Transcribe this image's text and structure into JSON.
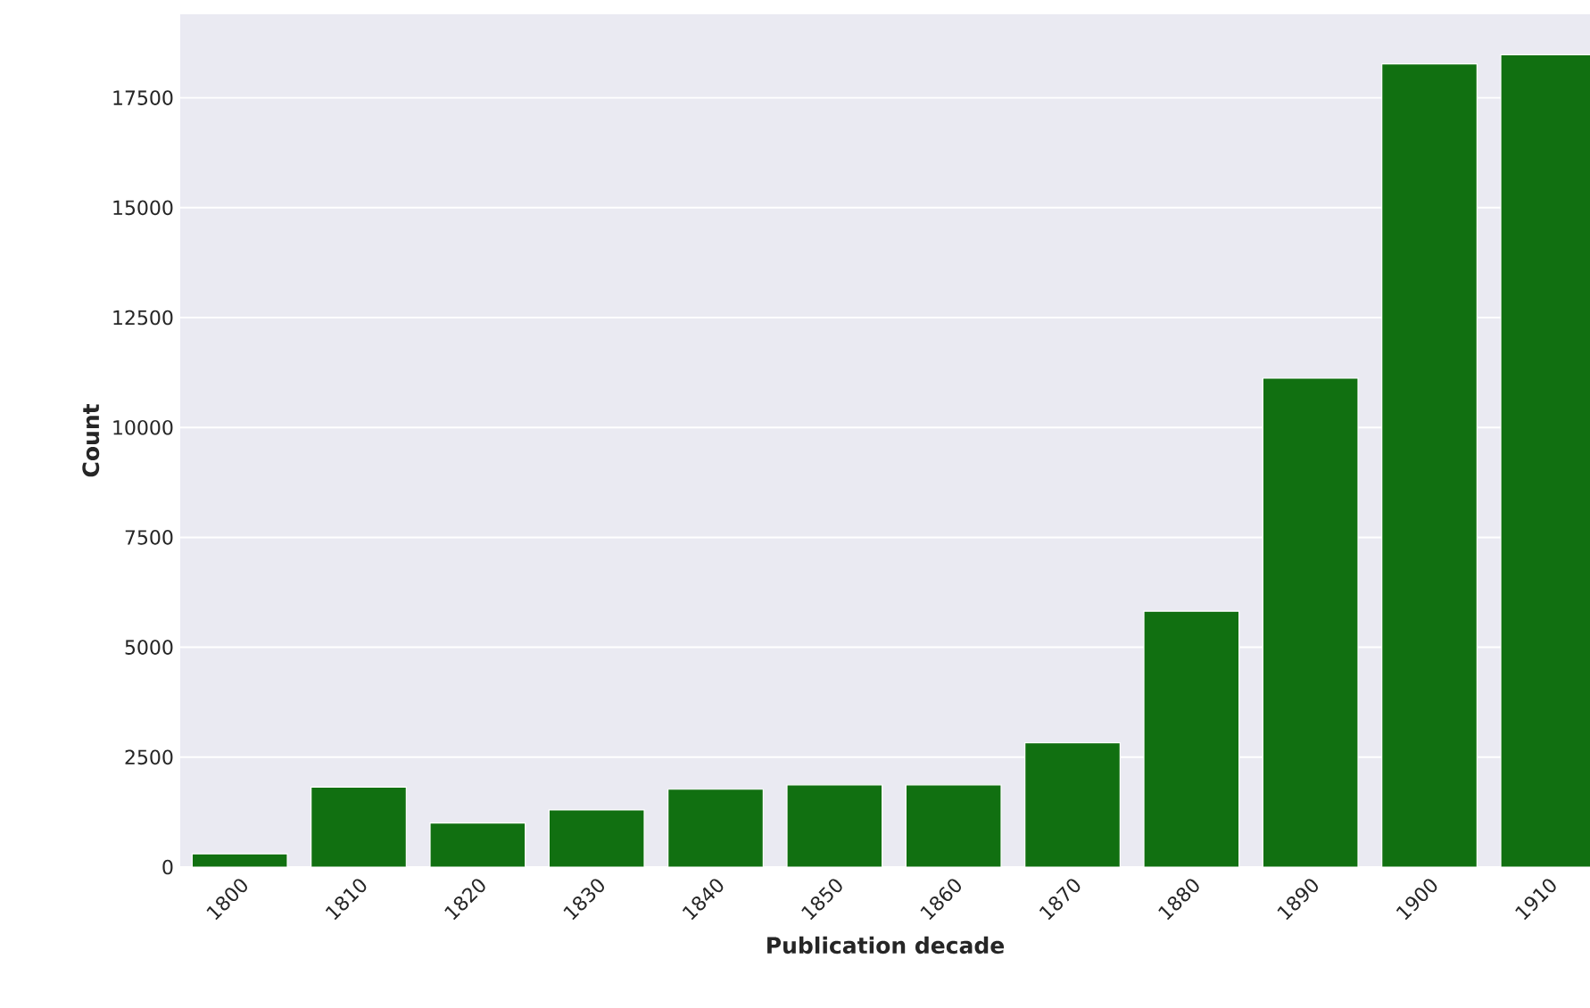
{
  "chart_data": {
    "type": "bar",
    "xlabel": "Publication decade",
    "ylabel": "Count",
    "categories": [
      "1800",
      "1810",
      "1820",
      "1830",
      "1840",
      "1850",
      "1860",
      "1870",
      "1880",
      "1890",
      "1900",
      "1910"
    ],
    "values": [
      300,
      1820,
      1000,
      1300,
      1770,
      1870,
      1870,
      2830,
      5820,
      11120,
      18270,
      18480
    ],
    "color": "#117011",
    "ylim": [
      0,
      19400
    ],
    "yticks": [
      0,
      2500,
      5000,
      7500,
      10000,
      12500,
      15000,
      17500
    ],
    "grid": "y"
  }
}
